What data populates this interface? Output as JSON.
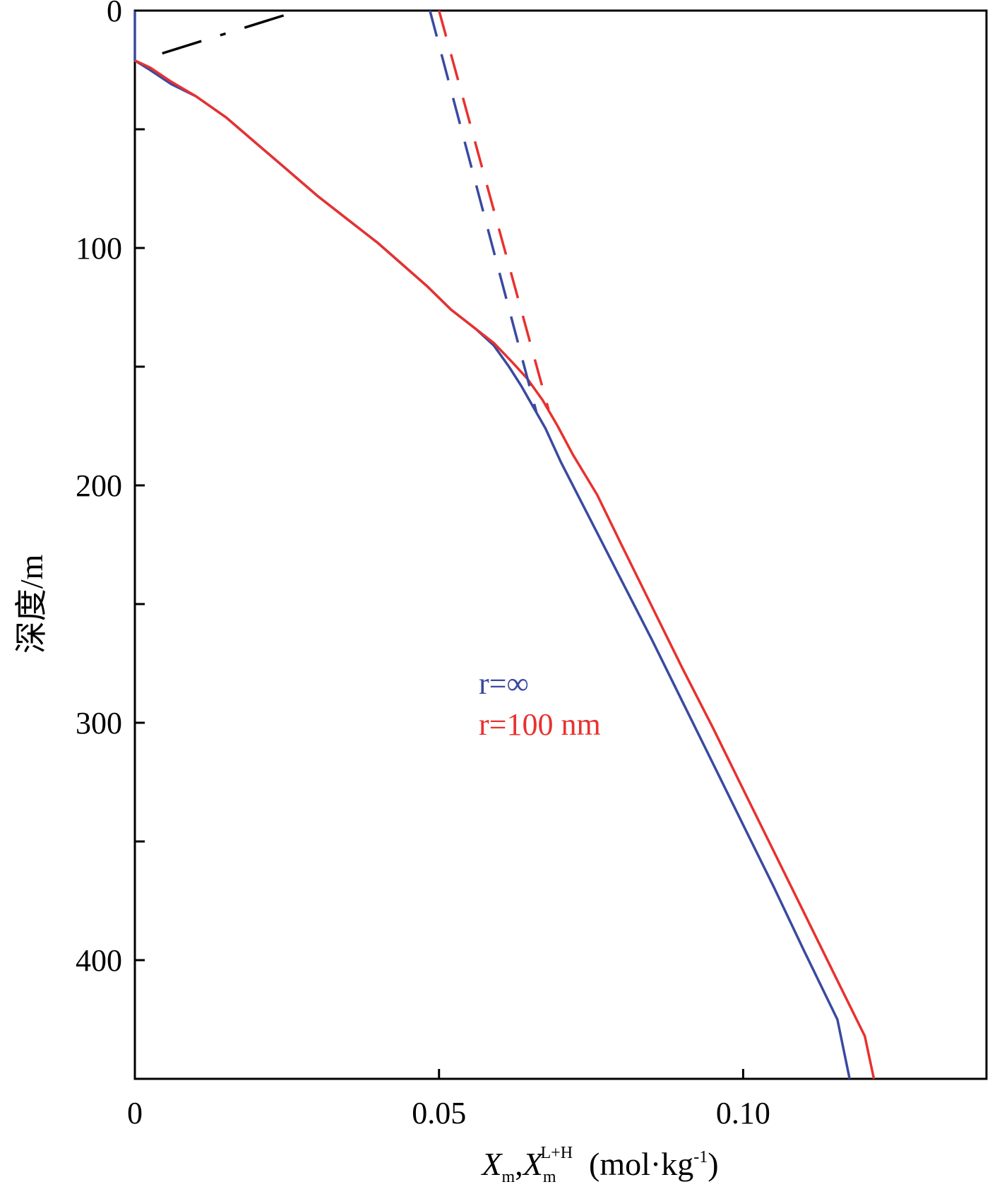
{
  "chart_data": {
    "type": "line",
    "xlabel": {
      "main": "X",
      "sub1": "m",
      "sep": ",",
      "main2": "X",
      "sub2": "m",
      "sup2": "L+H",
      "unit_pre": "  (mol·kg",
      "unit_sup": "-1",
      "unit_post": ")"
    },
    "ylabel": "深度/m",
    "xlim": [
      0,
      0.14
    ],
    "ylim": [
      0,
      450
    ],
    "y_inverted": true,
    "xticks": [
      0,
      0.05,
      0.1
    ],
    "xtick_labels": [
      "0",
      "0.05",
      "0.10"
    ],
    "yticks": [
      0,
      100,
      200,
      300,
      400
    ],
    "ytick_labels": [
      "0",
      "100",
      "200",
      "300",
      "400"
    ],
    "y_minor_ticks": [
      50,
      150,
      250,
      350
    ],
    "grid": false,
    "colors": {
      "blue": "#3a4aa0",
      "red": "#e8312f",
      "black": "#000000"
    },
    "legend": {
      "placement": "center",
      "entries": [
        {
          "label": "r=∞",
          "color": "#3a4aa0"
        },
        {
          "label": "r=100 nm",
          "color": "#e8312f"
        }
      ]
    },
    "series": [
      {
        "color": "#3a4aa0",
        "style": "solid",
        "points": [
          [
            0,
            0
          ],
          [
            0,
            21
          ],
          [
            0.0025,
            25
          ],
          [
            0.006,
            31
          ],
          [
            0.01,
            36
          ],
          [
            0.015,
            45
          ],
          [
            0.02,
            56
          ],
          [
            0.025,
            67
          ],
          [
            0.03,
            78
          ],
          [
            0.035,
            88
          ],
          [
            0.04,
            98
          ],
          [
            0.044,
            107
          ],
          [
            0.048,
            116
          ],
          [
            0.052,
            126
          ],
          [
            0.056,
            134
          ],
          [
            0.059,
            141
          ],
          [
            0.0615,
            150
          ],
          [
            0.0635,
            158
          ],
          [
            0.0655,
            167
          ],
          [
            0.0675,
            176
          ],
          [
            0.07,
            190
          ],
          [
            0.075,
            215
          ],
          [
            0.08,
            240
          ],
          [
            0.085,
            265
          ],
          [
            0.09,
            291
          ],
          [
            0.095,
            317
          ],
          [
            0.1,
            343
          ],
          [
            0.105,
            369
          ],
          [
            0.11,
            396
          ],
          [
            0.1155,
            425
          ],
          [
            0.1175,
            450
          ]
        ]
      },
      {
        "color": "#e8312f",
        "style": "solid",
        "points": [
          [
            0,
            21
          ],
          [
            0.0025,
            24
          ],
          [
            0.006,
            30
          ],
          [
            0.01,
            36
          ],
          [
            0.015,
            45
          ],
          [
            0.02,
            56
          ],
          [
            0.025,
            67
          ],
          [
            0.03,
            78
          ],
          [
            0.035,
            88
          ],
          [
            0.04,
            98
          ],
          [
            0.044,
            107
          ],
          [
            0.048,
            116
          ],
          [
            0.052,
            126
          ],
          [
            0.056,
            134
          ],
          [
            0.059,
            140
          ],
          [
            0.062,
            148
          ],
          [
            0.0645,
            155
          ],
          [
            0.067,
            164
          ],
          [
            0.0695,
            175
          ],
          [
            0.072,
            187
          ],
          [
            0.076,
            204
          ],
          [
            0.08,
            225
          ],
          [
            0.085,
            251
          ],
          [
            0.09,
            277
          ],
          [
            0.095,
            302
          ],
          [
            0.1,
            328
          ],
          [
            0.105,
            354
          ],
          [
            0.11,
            380
          ],
          [
            0.115,
            406
          ],
          [
            0.12,
            432
          ],
          [
            0.1215,
            450
          ]
        ]
      },
      {
        "color": "#3a4aa0",
        "style": "dashed",
        "points": [
          [
            0.0485,
            0
          ],
          [
            0.066,
            169
          ]
        ]
      },
      {
        "color": "#e8312f",
        "style": "dashed",
        "points": [
          [
            0.05,
            0
          ],
          [
            0.068,
            168
          ]
        ]
      },
      {
        "color": "#000000",
        "style": "dashdot",
        "points": [
          [
            0.0045,
            18
          ],
          [
            0.027,
            0
          ]
        ]
      }
    ]
  }
}
